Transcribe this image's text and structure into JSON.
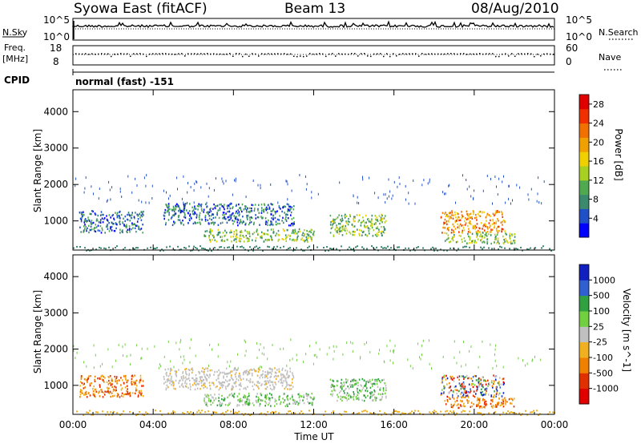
{
  "header": {
    "title": "Syowa East (fitACF)",
    "beam": "Beam 13",
    "date": "08/Aug/2010"
  },
  "top_panels": {
    "nsky_label": "N.Sky",
    "nsearch_label": "N.Search",
    "noise_ticks": [
      "10^5",
      "10^0"
    ],
    "noise_ticks_right": [
      "10^5",
      "10^0"
    ],
    "freq_label_1": "Freq.",
    "freq_label_2": "[MHz]",
    "freq_ticks": [
      "18",
      "8"
    ],
    "nave_label": "Nave",
    "nave_ticks": [
      "60",
      "0"
    ],
    "cpid_label": "CPID",
    "cpid_value": "normal (fast) -151"
  },
  "chart_data": [
    {
      "type": "heatmap",
      "title": "",
      "ylabel": "Slant Range [km]",
      "xlabel": "",
      "x_ticks": [
        "00:00",
        "04:00",
        "08:00",
        "12:00",
        "16:00",
        "20:00",
        "00:00"
      ],
      "y_ticks": [
        1000,
        2000,
        3000,
        4000
      ],
      "xlim": [
        0,
        24
      ],
      "ylim": [
        200,
        4600
      ],
      "colorbar": {
        "label": "Power [dB]",
        "ticks": [
          4,
          8,
          12,
          16,
          20,
          24,
          28
        ],
        "range": [
          0,
          30
        ],
        "colors": [
          "#0000ff",
          "#2050c8",
          "#3c8a6e",
          "#50a850",
          "#a8d020",
          "#f0d000",
          "#f0a000",
          "#f07000",
          "#f03000",
          "#e00000"
        ]
      },
      "scatter_regions": [
        {
          "t": [
            0.3,
            3.5
          ],
          "range": [
            700,
            1300
          ],
          "level": "low-mid"
        },
        {
          "t": [
            4.5,
            11.0
          ],
          "range": [
            900,
            1500
          ],
          "level": "low-mid"
        },
        {
          "t": [
            6.5,
            12.0
          ],
          "range": [
            450,
            800
          ],
          "level": "mid"
        },
        {
          "t": [
            12.8,
            15.6
          ],
          "range": [
            600,
            1200
          ],
          "level": "mid"
        },
        {
          "t": [
            18.3,
            21.5
          ],
          "range": [
            700,
            1300
          ],
          "level": "high"
        },
        {
          "t": [
            18.5,
            22.0
          ],
          "range": [
            400,
            700
          ],
          "level": "mid"
        }
      ]
    },
    {
      "type": "heatmap",
      "title": "",
      "ylabel": "Slant Range [km]",
      "xlabel": "Time UT",
      "x_ticks": [
        "00:00",
        "04:00",
        "08:00",
        "12:00",
        "16:00",
        "20:00",
        "00:00"
      ],
      "y_ticks": [
        1000,
        2000,
        3000,
        4000
      ],
      "xlim": [
        0,
        24
      ],
      "ylim": [
        200,
        4600
      ],
      "colorbar": {
        "label": "Velocity [m s^-1]",
        "ticks": [
          "1000",
          "500",
          "100",
          "25",
          "-25",
          "-100",
          "-500",
          "-1000"
        ],
        "colors": [
          "#1020c0",
          "#3060d0",
          "#30a040",
          "#70d040",
          "#c0c0c0",
          "#f0b020",
          "#f08000",
          "#e03000",
          "#e00000"
        ]
      },
      "scatter_regions": [
        {
          "t": [
            0.3,
            3.5
          ],
          "range": [
            700,
            1300
          ],
          "level": "negative"
        },
        {
          "t": [
            4.5,
            11.0
          ],
          "range": [
            900,
            1500
          ],
          "level": "ground-scatter"
        },
        {
          "t": [
            6.5,
            12.0
          ],
          "range": [
            450,
            800
          ],
          "level": "positive-low"
        },
        {
          "t": [
            12.8,
            15.6
          ],
          "range": [
            600,
            1200
          ],
          "level": "positive-low"
        },
        {
          "t": [
            18.3,
            21.5
          ],
          "range": [
            700,
            1300
          ],
          "level": "mixed-high"
        },
        {
          "t": [
            18.5,
            22.0
          ],
          "range": [
            400,
            700
          ],
          "level": "negative"
        }
      ]
    }
  ]
}
